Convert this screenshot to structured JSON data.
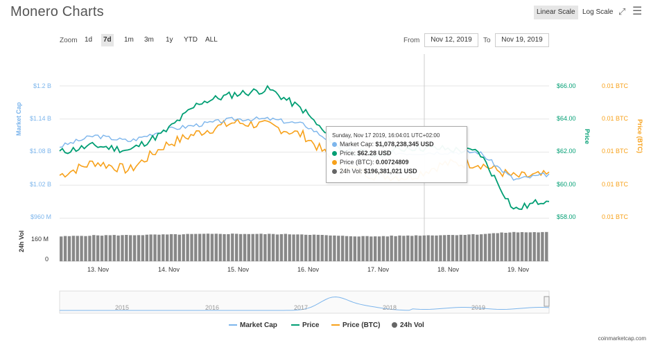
{
  "header": {
    "title": "Monero Charts",
    "linear_label": "Linear Scale",
    "log_label": "Log Scale"
  },
  "zoom": {
    "label": "Zoom",
    "buttons": [
      "1d",
      "7d",
      "1m",
      "3m",
      "1y",
      "YTD",
      "ALL"
    ],
    "active": "7d"
  },
  "range": {
    "from_label": "From",
    "from_value": "Nov 12, 2019",
    "to_label": "To",
    "to_value": "Nov 19, 2019"
  },
  "colors": {
    "market_cap": "#7cb5ec",
    "price": "#009e73",
    "price_btc": "#f7a11a",
    "volume": "#666666"
  },
  "axes": {
    "left_title": "Market Cap",
    "left_ticks": [
      "$1.2 B",
      "$1.14 B",
      "$1.08 B",
      "$1.02 B",
      "$960 M"
    ],
    "right_title": "Price",
    "right_ticks": [
      "$66.00",
      "$64.00",
      "$62.00",
      "$60.00",
      "$58.00"
    ],
    "right2_title": "Price (BTC)",
    "right2_ticks": [
      "0.01 BTC",
      "0.01 BTC",
      "0.01 BTC",
      "0.01 BTC",
      "0.01 BTC"
    ],
    "vol_title": "24h Vol",
    "vol_ticks": [
      "160 M",
      "0"
    ],
    "x_ticks": [
      "13. Nov",
      "14. Nov",
      "15. Nov",
      "16. Nov",
      "17. Nov",
      "18. Nov",
      "19. Nov"
    ],
    "nav_ticks": [
      "2015",
      "2016",
      "2017",
      "2018",
      "2019"
    ]
  },
  "tooltip": {
    "date": "Sunday, Nov 17 2019, 16:04:01 UTC+02:00",
    "market_cap_label": "Market Cap:",
    "market_cap_value": "$1,078,238,345 USD",
    "price_label": "Price:",
    "price_value": "$62.28 USD",
    "price_btc_label": "Price (BTC):",
    "price_btc_value": "0.00724809",
    "vol_label": "24h Vol:",
    "vol_value": "$196,381,021 USD"
  },
  "legend": [
    "Market Cap",
    "Price",
    "Price (BTC)",
    "24h Vol"
  ],
  "credit": "coinmarketcap.com",
  "chart_data": {
    "type": "line",
    "x": [
      "Nov 12 12:00",
      "Nov 13 00:00",
      "Nov 13 12:00",
      "Nov 14 00:00",
      "Nov 14 12:00",
      "Nov 15 00:00",
      "Nov 15 12:00",
      "Nov 16 00:00",
      "Nov 16 12:00",
      "Nov 17 00:00",
      "Nov 17 12:00",
      "Nov 18 00:00",
      "Nov 18 12:00",
      "Nov 19 00:00",
      "Nov 19 12:00"
    ],
    "series": [
      {
        "name": "Market Cap",
        "axis": "left",
        "values": [
          1.09,
          1.11,
          1.1,
          1.12,
          1.13,
          1.14,
          1.14,
          1.13,
          1.09,
          1.08,
          1.078,
          1.08,
          1.08,
          1.03,
          1.04
        ]
      },
      {
        "name": "Price",
        "axis": "right",
        "values": [
          62.0,
          62.4,
          62.1,
          63.2,
          65.0,
          65.5,
          65.8,
          64.5,
          62.2,
          61.8,
          62.28,
          62.2,
          62.0,
          58.5,
          59.2
        ]
      },
      {
        "name": "Price (BTC)",
        "axis": "right2",
        "values": [
          0.00726,
          0.00734,
          0.00729,
          0.00744,
          0.00752,
          0.00758,
          0.00756,
          0.0075,
          0.00732,
          0.00726,
          0.00724809,
          0.00733,
          0.00733,
          0.00725,
          0.00726
        ]
      },
      {
        "name": "24h Vol",
        "axis": "vol",
        "values": [
          190,
          198,
          200,
          204,
          208,
          210,
          208,
          206,
          194,
          190,
          196.38,
          200,
          206,
          222,
          222
        ]
      }
    ],
    "ylim_left": [
      0.96,
      1.2
    ],
    "ylim_right": [
      58,
      66
    ],
    "grid": true
  }
}
